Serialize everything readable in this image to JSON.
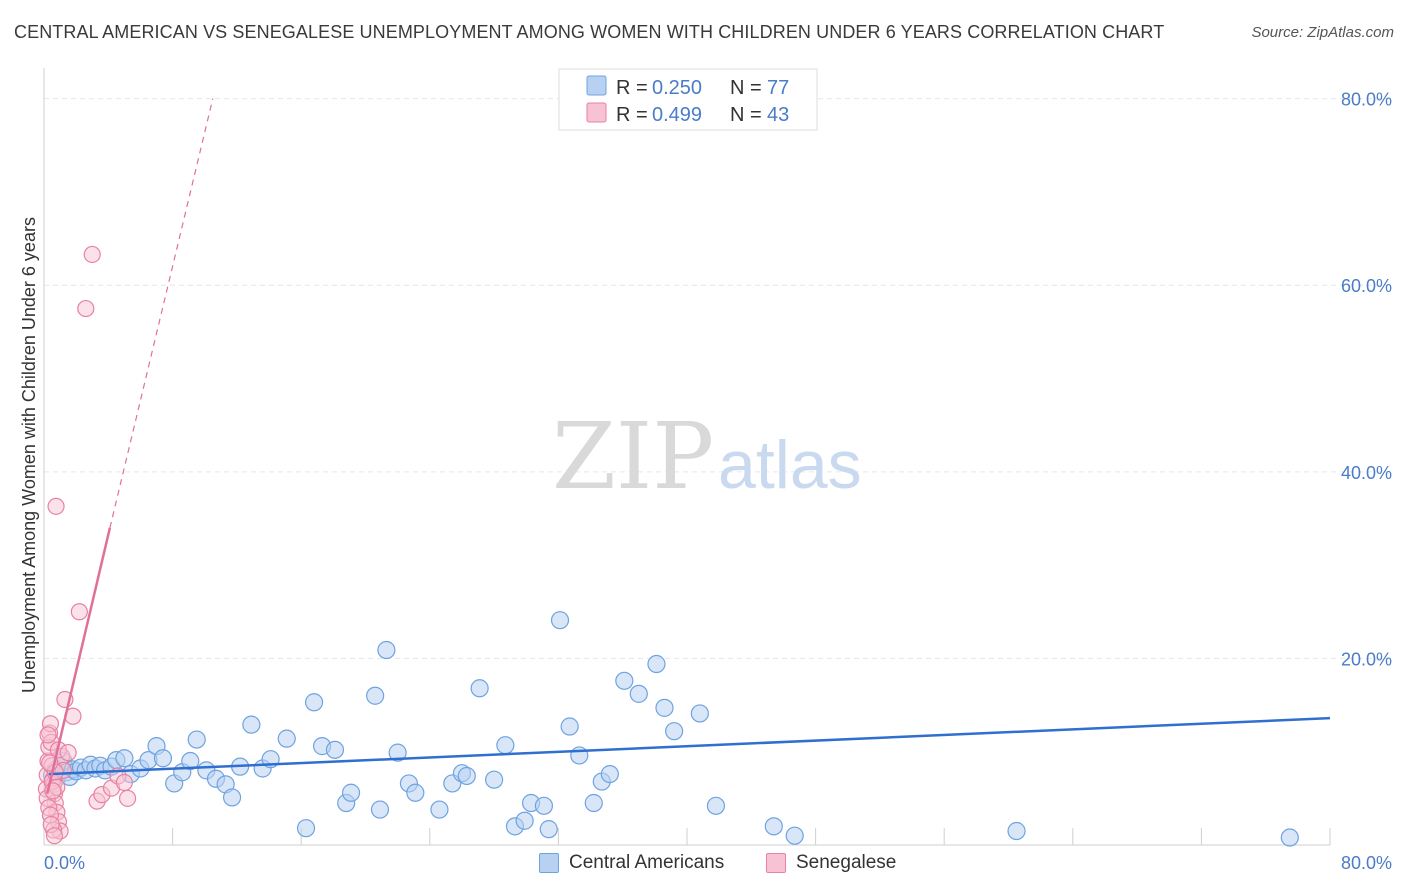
{
  "title": "CENTRAL AMERICAN VS SENEGALESE UNEMPLOYMENT AMONG WOMEN WITH CHILDREN UNDER 6 YEARS CORRELATION CHART",
  "source": "Source: ZipAtlas.com",
  "colors": {
    "central": "#6fa3e0",
    "central_fill": "#b8d1f2",
    "central_line": "#2f6fcf",
    "senegalese": "#e882a3",
    "senegalese_fill": "#f7c3d4",
    "senegalese_line": "#e0709a",
    "axis_label": "#4a7cc9"
  },
  "watermark": {
    "zip": "ZIP",
    "atlas": "atlas"
  },
  "stats_legend": [
    {
      "series": "Central Americans",
      "r_label": "R = ",
      "r_value": "0.250",
      "n_label": "N = ",
      "n_value": "77"
    },
    {
      "series": "Senegalese",
      "r_label": "R = ",
      "r_value": "0.499",
      "n_label": "N = ",
      "n_value": "43"
    }
  ],
  "chart_data": {
    "type": "scatter",
    "title": "CENTRAL AMERICAN VS SENEGALESE UNEMPLOYMENT AMONG WOMEN WITH CHILDREN UNDER 6 YEARS CORRELATION CHART",
    "xlabel": "",
    "ylabel": "Unemployment Among Women with Children Under 6 years",
    "xlim": [
      0,
      80
    ],
    "ylim": [
      0,
      82
    ],
    "x_tick_labels": [
      "0.0%",
      "80.0%"
    ],
    "y_ticks": [
      20,
      40,
      60,
      80
    ],
    "y_tick_labels": [
      "20.0%",
      "40.0%",
      "60.0%",
      "80.0%"
    ],
    "grid": true,
    "legend_position": "bottom",
    "series": [
      {
        "name": "Central Americans",
        "x": [
          0.5,
          0.7,
          0.8,
          1.0,
          1.2,
          1.4,
          1.6,
          1.8,
          2.0,
          2.3,
          2.6,
          2.9,
          3.2,
          3.5,
          3.8,
          4.2,
          4.5,
          5.0,
          5.4,
          6.0,
          6.5,
          7.0,
          7.4,
          8.1,
          8.6,
          9.1,
          9.5,
          10.1,
          10.7,
          11.3,
          11.7,
          12.2,
          12.9,
          13.6,
          14.1,
          15.1,
          16.3,
          16.8,
          17.3,
          18.1,
          18.8,
          19.1,
          20.6,
          20.9,
          21.3,
          22.0,
          22.7,
          23.1,
          24.6,
          25.4,
          26.0,
          26.3,
          27.1,
          28.0,
          28.7,
          29.3,
          29.9,
          30.3,
          31.1,
          31.4,
          32.1,
          32.7,
          33.3,
          34.2,
          34.7,
          35.2,
          36.1,
          37.0,
          38.1,
          38.6,
          39.2,
          40.8,
          41.8,
          45.4,
          46.7,
          60.5,
          77.5
        ],
        "y": [
          7.5,
          8.0,
          7.2,
          8.5,
          9.0,
          7.8,
          7.3,
          8.1,
          7.9,
          8.3,
          8.0,
          8.6,
          8.2,
          8.5,
          8.0,
          8.4,
          9.1,
          9.3,
          7.6,
          8.2,
          9.1,
          10.6,
          9.3,
          6.6,
          7.8,
          9.0,
          11.3,
          8.0,
          7.1,
          6.5,
          5.1,
          8.4,
          12.9,
          8.2,
          9.2,
          11.4,
          1.8,
          15.3,
          10.6,
          10.2,
          4.5,
          5.6,
          16.0,
          3.8,
          20.9,
          9.9,
          6.6,
          5.6,
          3.8,
          6.6,
          7.7,
          7.4,
          16.8,
          7.0,
          10.7,
          2.0,
          2.6,
          4.5,
          4.2,
          1.7,
          24.1,
          12.7,
          9.6,
          4.5,
          6.8,
          7.6,
          17.6,
          16.2,
          19.4,
          14.7,
          12.2,
          14.1,
          4.2,
          2.0,
          1.0,
          1.5,
          0.8
        ],
        "trend": {
          "x": [
            0.3,
            80
          ],
          "y": [
            7.6,
            13.6
          ]
        }
      },
      {
        "name": "Senegalese",
        "x": [
          0.15,
          0.2,
          0.25,
          0.3,
          0.35,
          0.4,
          0.45,
          0.5,
          0.55,
          0.6,
          0.65,
          0.7,
          0.8,
          0.9,
          1.0,
          1.1,
          1.2,
          0.2,
          0.3,
          0.5,
          0.7,
          0.9,
          0.4,
          0.6,
          0.8,
          0.25,
          0.35,
          0.55,
          0.75,
          1.3,
          1.5,
          1.8,
          2.2,
          2.6,
          3.0,
          3.3,
          3.6,
          4.2,
          4.6,
          5.0,
          5.2,
          0.45,
          0.65
        ],
        "y": [
          6.0,
          7.5,
          9.0,
          10.5,
          12.0,
          13.0,
          11.0,
          8.5,
          7.0,
          6.5,
          5.5,
          4.5,
          3.5,
          2.5,
          1.5,
          9.5,
          8.0,
          5.0,
          4.0,
          6.8,
          7.8,
          10.2,
          3.2,
          1.6,
          6.2,
          11.8,
          8.8,
          5.8,
          36.3,
          15.6,
          9.9,
          13.8,
          25.0,
          57.5,
          63.3,
          4.7,
          5.4,
          6.1,
          7.4,
          6.7,
          5.0,
          2.2,
          1.0
        ],
        "trend": {
          "x": [
            0.2,
            4.1
          ],
          "y": [
            5.5,
            34.0
          ]
        },
        "trend_extension": {
          "x": [
            4.1,
            10.5
          ],
          "y": [
            34.0,
            80.0
          ]
        }
      }
    ]
  }
}
